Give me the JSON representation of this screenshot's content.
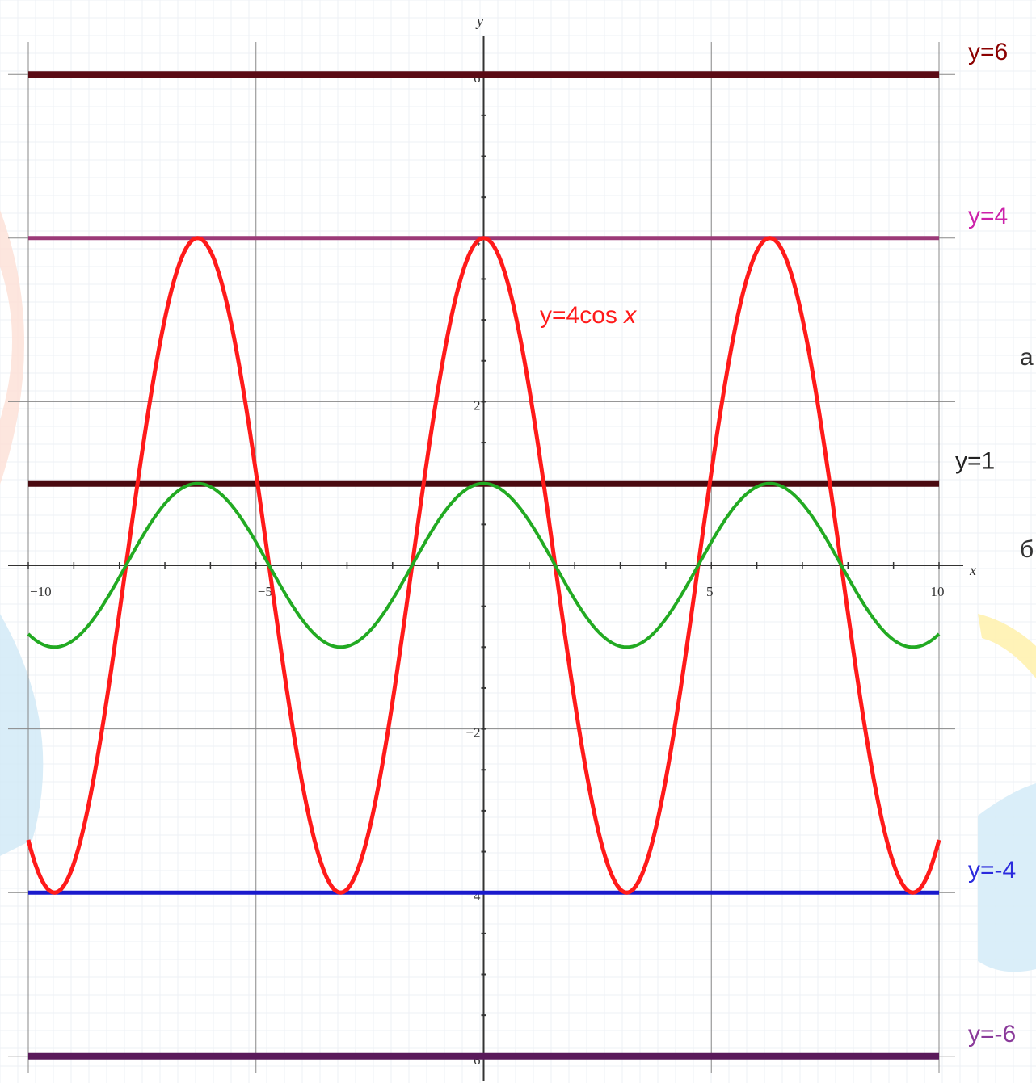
{
  "chart_data": {
    "type": "line",
    "xlabel": "x",
    "ylabel": "y",
    "xlim": [
      -10,
      10
    ],
    "ylim": [
      -6.2,
      6.2
    ],
    "x_ticks": [
      -10,
      -5,
      5,
      10
    ],
    "y_ticks": [
      -6,
      -4,
      -2,
      2,
      4,
      6
    ],
    "grid": true,
    "curves": [
      {
        "label": "y=4cos x",
        "amplitude": 4,
        "function": "cos",
        "color": "#ff1a1a",
        "stroke_width": 5
      },
      {
        "label": "",
        "amplitude": 1,
        "function": "cos",
        "color": "#22aa22",
        "stroke_width": 4
      }
    ],
    "horizontal_lines": [
      {
        "y": 6,
        "label": "y=6",
        "color": "#5a0a14",
        "label_color": "#8b0000"
      },
      {
        "y": 4,
        "label": "y=4",
        "color": "#9b3a78",
        "label_color": "#cc22aa"
      },
      {
        "y": 1,
        "label": "y=1",
        "color": "#4a0a10",
        "label_color": "#222222"
      },
      {
        "y": -4,
        "label": "y=-4",
        "color": "#1a1acc",
        "label_color": "#2a2add"
      },
      {
        "y": -6,
        "label": "y=-6",
        "color": "#5a1a5a",
        "label_color": "#8a3a9a"
      }
    ]
  },
  "side_letters": [
    "а",
    "б"
  ]
}
